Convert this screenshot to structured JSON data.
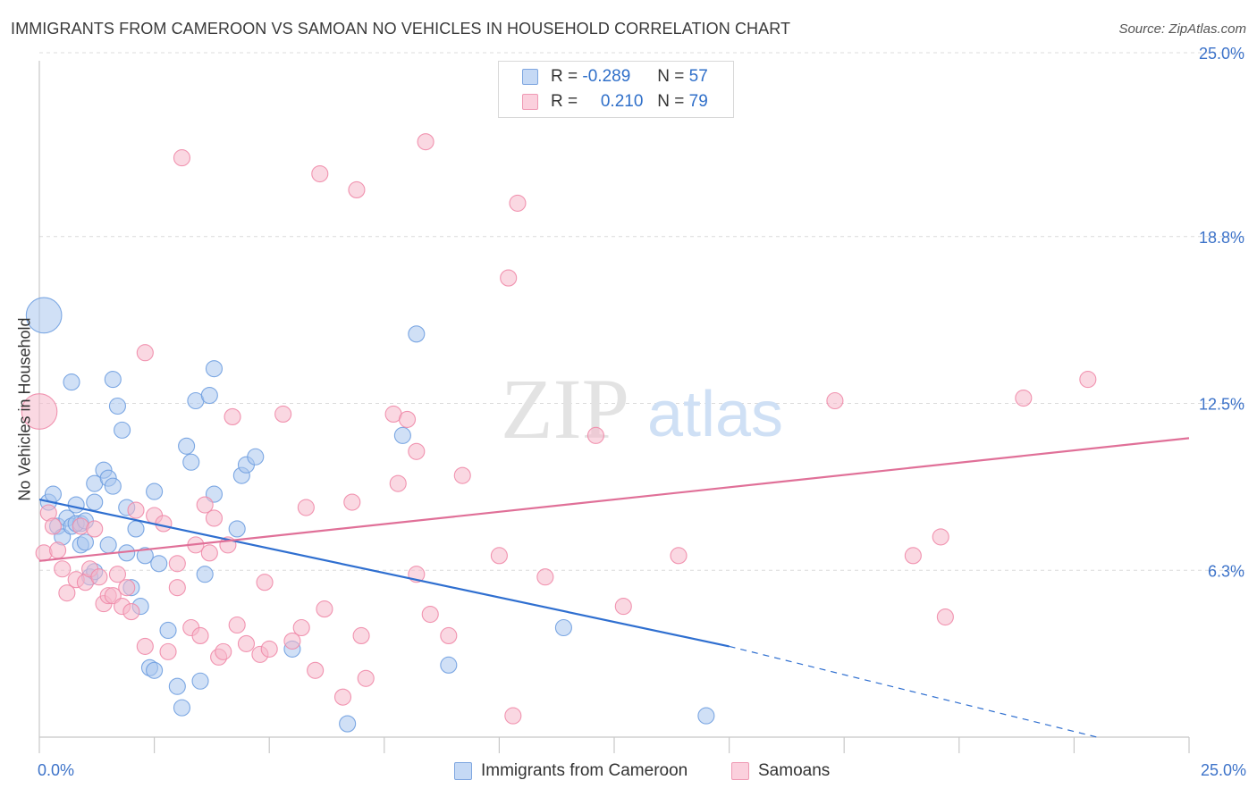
{
  "title": "IMMIGRANTS FROM CAMEROON VS SAMOAN NO VEHICLES IN HOUSEHOLD CORRELATION CHART",
  "source": "Source: ZipAtlas.com",
  "watermark": {
    "zip": "ZIP",
    "atlas": "atlas"
  },
  "legend": {
    "r_label": "R =",
    "n_label": "N =",
    "rows": [
      {
        "r": "-0.289",
        "n": "57",
        "color": "#a9c6ef"
      },
      {
        "r": " 0.210",
        "n": "79",
        "color": "#f6b8cb"
      }
    ]
  },
  "chart_data": {
    "type": "scatter",
    "title": "IMMIGRANTS FROM CAMEROON VS SAMOAN NO VEHICLES IN HOUSEHOLD CORRELATION CHART",
    "xlabel": "",
    "ylabel": "No Vehicles in Household",
    "xlim": [
      0,
      25
    ],
    "ylim": [
      0,
      25
    ],
    "x_tick_labels": [
      "0.0%",
      "25.0%"
    ],
    "y_tick_labels": [
      "6.3%",
      "12.5%",
      "18.8%",
      "25.0%"
    ],
    "y_ticks": [
      6.25,
      12.5,
      18.75,
      25.0
    ],
    "grid": true,
    "legend_position": "top-center",
    "series": [
      {
        "name": "Immigrants from Cameroon",
        "color": "#6f9fe0",
        "fill": "#a9c6ef",
        "trend": {
          "x0": 0,
          "y0": 8.9,
          "x1": 15.0,
          "y1": 3.4,
          "dashed_to_x": 23.0,
          "dashed_to_y": 0.0,
          "color": "#2f6fd0"
        },
        "points": [
          [
            0.1,
            15.8,
            2.2
          ],
          [
            0.2,
            8.8,
            1
          ],
          [
            0.3,
            9.1,
            1
          ],
          [
            0.4,
            7.9,
            1
          ],
          [
            0.5,
            7.5,
            1
          ],
          [
            0.6,
            8.2,
            1
          ],
          [
            0.7,
            7.9,
            1
          ],
          [
            0.8,
            8.7,
            1
          ],
          [
            0.9,
            7.2,
            1
          ],
          [
            0.9,
            8.0,
            1
          ],
          [
            0.7,
            13.3,
            1
          ],
          [
            1.0,
            7.3,
            1
          ],
          [
            1.1,
            6.0,
            1
          ],
          [
            1.2,
            6.2,
            1
          ],
          [
            1.2,
            8.8,
            1
          ],
          [
            1.2,
            9.5,
            1
          ],
          [
            1.4,
            10.0,
            1
          ],
          [
            1.5,
            9.7,
            1
          ],
          [
            1.5,
            7.2,
            1
          ],
          [
            1.6,
            9.4,
            1
          ],
          [
            1.6,
            13.4,
            1
          ],
          [
            1.7,
            12.4,
            1
          ],
          [
            1.8,
            11.5,
            1
          ],
          [
            1.9,
            6.9,
            1
          ],
          [
            1.9,
            8.6,
            1
          ],
          [
            2.0,
            5.6,
            1
          ],
          [
            2.1,
            7.8,
            1
          ],
          [
            2.2,
            4.9,
            1
          ],
          [
            2.3,
            6.8,
            1
          ],
          [
            2.4,
            2.6,
            1
          ],
          [
            2.5,
            9.2,
            1
          ],
          [
            2.5,
            2.5,
            1
          ],
          [
            2.6,
            6.5,
            1
          ],
          [
            2.8,
            4.0,
            1
          ],
          [
            3.0,
            1.9,
            1
          ],
          [
            3.1,
            1.1,
            1
          ],
          [
            3.2,
            10.9,
            1
          ],
          [
            3.3,
            10.3,
            1
          ],
          [
            3.4,
            12.6,
            1
          ],
          [
            3.5,
            2.1,
            1
          ],
          [
            3.6,
            6.1,
            1
          ],
          [
            3.7,
            12.8,
            1
          ],
          [
            3.8,
            13.8,
            1
          ],
          [
            3.8,
            9.1,
            1
          ],
          [
            4.3,
            7.8,
            1
          ],
          [
            4.4,
            9.8,
            1
          ],
          [
            4.5,
            10.2,
            1
          ],
          [
            4.7,
            10.5,
            1
          ],
          [
            5.5,
            3.3,
            1
          ],
          [
            6.7,
            0.5,
            1
          ],
          [
            7.9,
            11.3,
            1
          ],
          [
            8.2,
            15.1,
            1
          ],
          [
            8.9,
            2.7,
            1
          ],
          [
            11.4,
            4.1,
            1
          ],
          [
            14.5,
            0.8,
            1
          ],
          [
            0.8,
            8.0,
            1
          ],
          [
            1.0,
            8.1,
            1
          ]
        ]
      },
      {
        "name": "Samoans",
        "color": "#ef8aa8",
        "fill": "#f6b8cb",
        "trend": {
          "x0": 0,
          "y0": 6.6,
          "x1": 25.0,
          "y1": 11.2,
          "color": "#e07098"
        },
        "points": [
          [
            0.0,
            12.2,
            2.2
          ],
          [
            0.1,
            6.9,
            1
          ],
          [
            0.2,
            8.4,
            1
          ],
          [
            0.3,
            7.9,
            1
          ],
          [
            0.4,
            7.0,
            1
          ],
          [
            0.5,
            6.3,
            1
          ],
          [
            0.6,
            5.4,
            1
          ],
          [
            0.8,
            5.9,
            1
          ],
          [
            0.9,
            7.9,
            1
          ],
          [
            1.0,
            5.8,
            1
          ],
          [
            1.1,
            6.3,
            1
          ],
          [
            1.2,
            7.8,
            1
          ],
          [
            1.3,
            6.0,
            1
          ],
          [
            1.4,
            5.0,
            1
          ],
          [
            1.5,
            5.3,
            1
          ],
          [
            1.6,
            5.3,
            1
          ],
          [
            1.7,
            6.1,
            1
          ],
          [
            1.8,
            4.9,
            1
          ],
          [
            1.9,
            5.6,
            1
          ],
          [
            2.0,
            4.7,
            1
          ],
          [
            2.1,
            8.5,
            1
          ],
          [
            2.3,
            14.4,
            1
          ],
          [
            2.3,
            3.4,
            1
          ],
          [
            2.5,
            8.3,
            1
          ],
          [
            2.7,
            8.0,
            1
          ],
          [
            2.8,
            3.2,
            1
          ],
          [
            3.0,
            6.5,
            1
          ],
          [
            3.0,
            5.6,
            1
          ],
          [
            3.1,
            21.7,
            1
          ],
          [
            3.3,
            4.1,
            1
          ],
          [
            3.4,
            7.2,
            1
          ],
          [
            3.5,
            3.8,
            1
          ],
          [
            3.6,
            8.7,
            1
          ],
          [
            3.7,
            6.9,
            1
          ],
          [
            3.8,
            8.2,
            1
          ],
          [
            3.9,
            3.0,
            1
          ],
          [
            4.0,
            3.2,
            1
          ],
          [
            4.1,
            7.2,
            1
          ],
          [
            4.2,
            12.0,
            1
          ],
          [
            4.3,
            4.2,
            1
          ],
          [
            4.5,
            3.5,
            1
          ],
          [
            4.8,
            3.1,
            1
          ],
          [
            4.9,
            5.8,
            1
          ],
          [
            5.0,
            3.3,
            1
          ],
          [
            5.3,
            12.1,
            1
          ],
          [
            5.5,
            3.6,
            1
          ],
          [
            5.7,
            4.1,
            1
          ],
          [
            5.8,
            8.6,
            1
          ],
          [
            6.0,
            2.5,
            1
          ],
          [
            6.1,
            21.1,
            1
          ],
          [
            6.2,
            4.8,
            1
          ],
          [
            6.6,
            1.5,
            1
          ],
          [
            6.8,
            8.8,
            1
          ],
          [
            6.9,
            20.5,
            1
          ],
          [
            7.0,
            3.8,
            1
          ],
          [
            7.1,
            2.2,
            1
          ],
          [
            7.7,
            12.1,
            1
          ],
          [
            7.8,
            9.5,
            1
          ],
          [
            8.0,
            11.9,
            1
          ],
          [
            8.2,
            10.7,
            1
          ],
          [
            8.2,
            6.1,
            1
          ],
          [
            8.4,
            22.3,
            1
          ],
          [
            8.5,
            4.6,
            1
          ],
          [
            8.9,
            3.8,
            1
          ],
          [
            9.2,
            9.8,
            1
          ],
          [
            10.0,
            6.8,
            1
          ],
          [
            10.2,
            17.2,
            1
          ],
          [
            10.3,
            0.8,
            1
          ],
          [
            10.4,
            20.0,
            1
          ],
          [
            11.0,
            6.0,
            1
          ],
          [
            12.1,
            11.3,
            1
          ],
          [
            12.7,
            4.9,
            1
          ],
          [
            13.9,
            6.8,
            1
          ],
          [
            17.3,
            12.6,
            1
          ],
          [
            19.0,
            6.8,
            1
          ],
          [
            19.6,
            7.5,
            1
          ],
          [
            19.7,
            4.5,
            1
          ],
          [
            21.4,
            12.7,
            1
          ],
          [
            22.8,
            13.4,
            1
          ]
        ]
      }
    ]
  },
  "bottom_legend": [
    "Immigrants from Cameroon",
    "Samoans"
  ]
}
